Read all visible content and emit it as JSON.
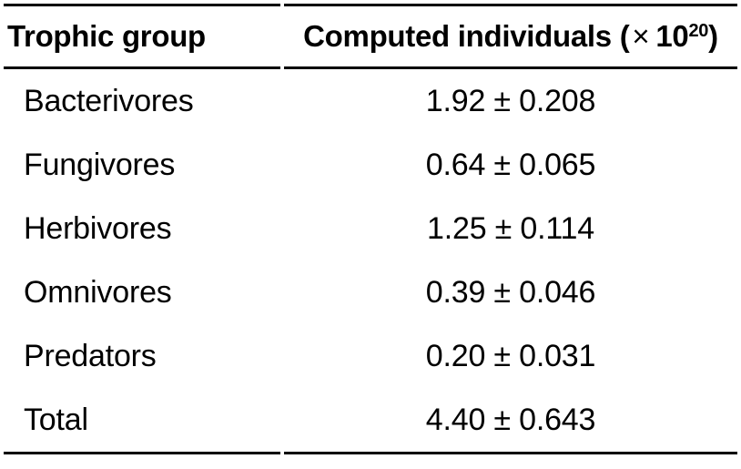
{
  "page": {
    "background_color": "#ffffff",
    "text_color": "#000000",
    "rule_color": "#000000"
  },
  "table": {
    "header": {
      "col1": "Trophic group",
      "col2_prefix": "Computed individuals (",
      "col2_times": "×",
      "col2_base": "10",
      "col2_exponent": "20",
      "col2_suffix": ")"
    },
    "rows": [
      {
        "group": "Bacterivores",
        "value": "1.92 ± 0.208"
      },
      {
        "group": "Fungivores",
        "value": "0.64 ± 0.065"
      },
      {
        "group": "Herbivores",
        "value": "1.25 ± 0.114"
      },
      {
        "group": "Omnivores",
        "value": "0.39 ± 0.046"
      },
      {
        "group": "Predators",
        "value": "0.20 ± 0.031"
      },
      {
        "group": "Total",
        "value": "4.40 ± 0.643"
      }
    ]
  },
  "chart_data": {
    "type": "table",
    "columns": [
      "Trophic group",
      "Computed individuals (× 10^20)"
    ],
    "rows": [
      [
        "Bacterivores",
        "1.92 ± 0.208"
      ],
      [
        "Fungivores",
        "0.64 ± 0.065"
      ],
      [
        "Herbivores",
        "1.25 ± 0.114"
      ],
      [
        "Omnivores",
        "0.39 ± 0.046"
      ],
      [
        "Predators",
        "0.20 ± 0.031"
      ],
      [
        "Total",
        "4.40 ± 0.643"
      ]
    ],
    "values": [
      {
        "group": "Bacterivores",
        "mean": 1.92,
        "error": 0.208
      },
      {
        "group": "Fungivores",
        "mean": 0.64,
        "error": 0.065
      },
      {
        "group": "Herbivores",
        "mean": 1.25,
        "error": 0.114
      },
      {
        "group": "Omnivores",
        "mean": 0.39,
        "error": 0.046
      },
      {
        "group": "Predators",
        "mean": 0.2,
        "error": 0.031
      },
      {
        "group": "Total",
        "mean": 4.4,
        "error": 0.643
      }
    ],
    "unit_multiplier": "10^20"
  }
}
